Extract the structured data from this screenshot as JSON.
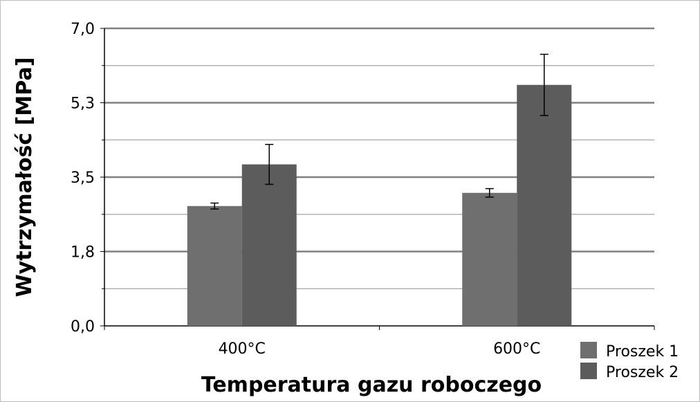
{
  "chart_data": {
    "type": "bar",
    "title": "",
    "xlabel": "Temperatura gazu roboczego",
    "ylabel": "Wytrzymałość [MPa]",
    "ylim": [
      0,
      7.0
    ],
    "y_ticks": [
      0.0,
      1.75,
      3.5,
      5.25,
      7.0
    ],
    "y_tick_labels": [
      "0,0",
      "1,8",
      "3,5",
      "5,3",
      "7,0"
    ],
    "grid": true,
    "legend_position": "bottom-right",
    "categories": [
      "400°C",
      "600°C"
    ],
    "series": [
      {
        "name": "Proszek 1",
        "color": "#6f6f6f",
        "values": [
          2.82,
          3.13
        ],
        "errors": [
          0.07,
          0.1
        ]
      },
      {
        "name": "Proszek 2",
        "color": "#5c5c5c",
        "values": [
          3.8,
          5.67
        ],
        "errors": [
          0.47,
          0.72
        ]
      }
    ]
  }
}
